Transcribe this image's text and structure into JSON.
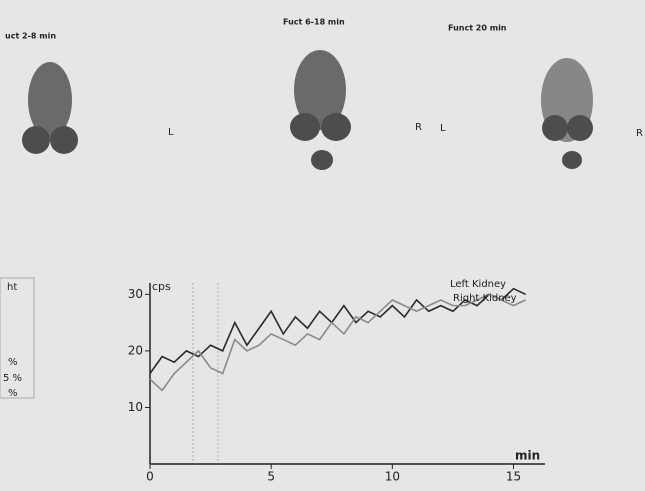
{
  "headings": [
    "uct 2-8 min",
    "Fuct 6-18 min",
    "Funct 20 min"
  ],
  "side_letters": [
    "L",
    "R",
    "L",
    "R"
  ],
  "side_table": [
    "ht",
    "%",
    "5 %",
    "%"
  ],
  "chart_data": {
    "type": "line",
    "x": [
      0,
      0.5,
      1,
      1.5,
      2,
      2.5,
      3,
      3.5,
      4,
      4.5,
      5,
      5.5,
      6,
      6.5,
      7,
      7.5,
      8,
      8.5,
      9,
      9.5,
      10,
      10.5,
      11,
      11.5,
      12,
      12.5,
      13,
      13.5,
      14,
      14.5,
      15,
      15.5
    ],
    "series": [
      {
        "name": "Left Kidney",
        "color": "#2a2a2a",
        "values": [
          16,
          19,
          18,
          20,
          19,
          21,
          20,
          25,
          21,
          24,
          27,
          23,
          26,
          24,
          27,
          25,
          28,
          25,
          27,
          26,
          28,
          26,
          29,
          27,
          28,
          27,
          29,
          28,
          30,
          29,
          31,
          30
        ]
      },
      {
        "name": "Right Kidney",
        "color": "#8a8a8a",
        "values": [
          15,
          13,
          16,
          18,
          20,
          17,
          16,
          22,
          20,
          21,
          23,
          22,
          21,
          23,
          22,
          25,
          23,
          26,
          25,
          27,
          29,
          28,
          27,
          28,
          29,
          28,
          28,
          29,
          30,
          29,
          28,
          29
        ]
      }
    ],
    "xlim": [
      0,
      16.3
    ],
    "ylim": [
      0,
      32
    ],
    "xticks": [
      0,
      5,
      10,
      15
    ],
    "yticks": [
      10,
      20,
      30
    ],
    "x_label": "min",
    "y_label": "cps"
  }
}
